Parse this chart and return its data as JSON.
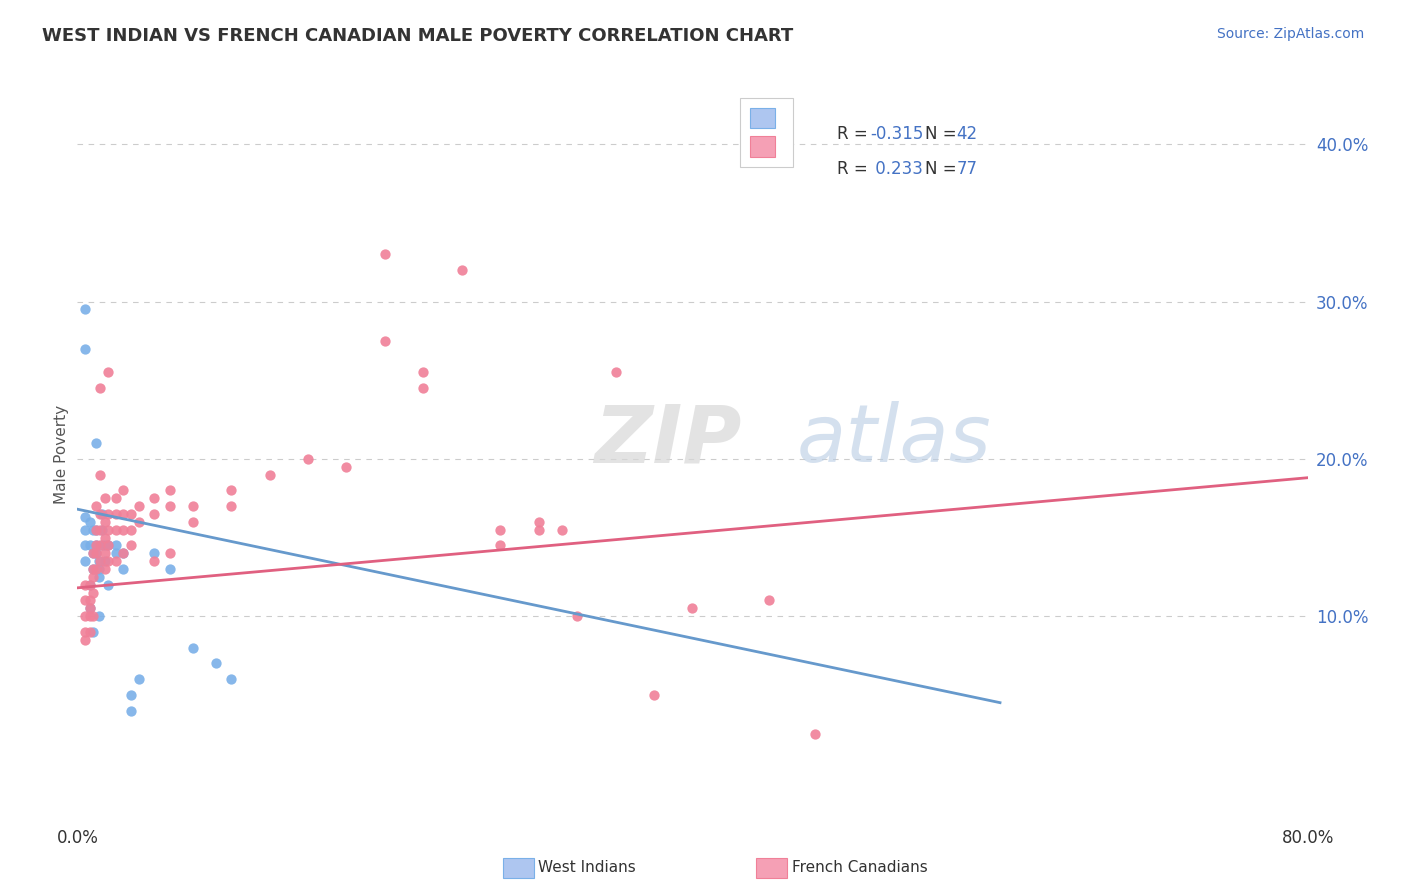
{
  "title": "WEST INDIAN VS FRENCH CANADIAN MALE POVERTY CORRELATION CHART",
  "source": "Source: ZipAtlas.com",
  "ylabel": "Male Poverty",
  "right_yticks": [
    "40.0%",
    "30.0%",
    "20.0%",
    "10.0%"
  ],
  "right_ytick_vals": [
    0.4,
    0.3,
    0.2,
    0.1
  ],
  "xlim": [
    0.0,
    0.8
  ],
  "ylim": [
    -0.03,
    0.435
  ],
  "west_indians_color": "#7ab0e8",
  "french_canadians_color": "#f08098",
  "west_legend_color": "#aec6f0",
  "french_legend_color": "#f5a0b5",
  "trend_west_color": "#6699cc",
  "trend_french_color": "#e06080",
  "background_color": "#ffffff",
  "grid_color": "#cccccc",
  "west_indians_scatter": [
    [
      0.005,
      0.135
    ],
    [
      0.005,
      0.145
    ],
    [
      0.005,
      0.155
    ],
    [
      0.005,
      0.163
    ],
    [
      0.008,
      0.16
    ],
    [
      0.008,
      0.145
    ],
    [
      0.008,
      0.12
    ],
    [
      0.008,
      0.105
    ],
    [
      0.01,
      0.155
    ],
    [
      0.01,
      0.14
    ],
    [
      0.01,
      0.13
    ],
    [
      0.01,
      0.09
    ],
    [
      0.012,
      0.21
    ],
    [
      0.012,
      0.155
    ],
    [
      0.012,
      0.145
    ],
    [
      0.012,
      0.14
    ],
    [
      0.014,
      0.135
    ],
    [
      0.014,
      0.13
    ],
    [
      0.014,
      0.125
    ],
    [
      0.014,
      0.1
    ],
    [
      0.016,
      0.165
    ],
    [
      0.016,
      0.155
    ],
    [
      0.016,
      0.145
    ],
    [
      0.018,
      0.145
    ],
    [
      0.018,
      0.135
    ],
    [
      0.02,
      0.145
    ],
    [
      0.02,
      0.12
    ],
    [
      0.025,
      0.145
    ],
    [
      0.025,
      0.14
    ],
    [
      0.03,
      0.14
    ],
    [
      0.03,
      0.13
    ],
    [
      0.035,
      0.05
    ],
    [
      0.035,
      0.04
    ],
    [
      0.04,
      0.06
    ],
    [
      0.005,
      0.295
    ],
    [
      0.005,
      0.27
    ],
    [
      0.05,
      0.14
    ],
    [
      0.06,
      0.13
    ],
    [
      0.075,
      0.08
    ],
    [
      0.09,
      0.07
    ],
    [
      0.1,
      0.06
    ]
  ],
  "french_canadians_scatter": [
    [
      0.005,
      0.12
    ],
    [
      0.005,
      0.11
    ],
    [
      0.005,
      0.1
    ],
    [
      0.005,
      0.09
    ],
    [
      0.005,
      0.085
    ],
    [
      0.008,
      0.12
    ],
    [
      0.008,
      0.11
    ],
    [
      0.008,
      0.105
    ],
    [
      0.008,
      0.1
    ],
    [
      0.008,
      0.09
    ],
    [
      0.01,
      0.14
    ],
    [
      0.01,
      0.13
    ],
    [
      0.01,
      0.125
    ],
    [
      0.01,
      0.115
    ],
    [
      0.01,
      0.1
    ],
    [
      0.012,
      0.17
    ],
    [
      0.012,
      0.155
    ],
    [
      0.012,
      0.145
    ],
    [
      0.012,
      0.14
    ],
    [
      0.012,
      0.13
    ],
    [
      0.015,
      0.19
    ],
    [
      0.015,
      0.165
    ],
    [
      0.015,
      0.155
    ],
    [
      0.015,
      0.145
    ],
    [
      0.015,
      0.135
    ],
    [
      0.018,
      0.175
    ],
    [
      0.018,
      0.16
    ],
    [
      0.018,
      0.15
    ],
    [
      0.018,
      0.14
    ],
    [
      0.018,
      0.13
    ],
    [
      0.02,
      0.165
    ],
    [
      0.02,
      0.155
    ],
    [
      0.02,
      0.145
    ],
    [
      0.02,
      0.135
    ],
    [
      0.025,
      0.175
    ],
    [
      0.025,
      0.165
    ],
    [
      0.025,
      0.155
    ],
    [
      0.03,
      0.18
    ],
    [
      0.03,
      0.165
    ],
    [
      0.03,
      0.155
    ],
    [
      0.035,
      0.165
    ],
    [
      0.035,
      0.155
    ],
    [
      0.035,
      0.145
    ],
    [
      0.04,
      0.17
    ],
    [
      0.04,
      0.16
    ],
    [
      0.05,
      0.175
    ],
    [
      0.05,
      0.165
    ],
    [
      0.06,
      0.18
    ],
    [
      0.06,
      0.17
    ],
    [
      0.075,
      0.17
    ],
    [
      0.075,
      0.16
    ],
    [
      0.1,
      0.18
    ],
    [
      0.1,
      0.17
    ],
    [
      0.125,
      0.19
    ],
    [
      0.15,
      0.2
    ],
    [
      0.175,
      0.195
    ],
    [
      0.2,
      0.33
    ],
    [
      0.2,
      0.275
    ],
    [
      0.225,
      0.255
    ],
    [
      0.225,
      0.245
    ],
    [
      0.25,
      0.32
    ],
    [
      0.275,
      0.155
    ],
    [
      0.275,
      0.145
    ],
    [
      0.3,
      0.16
    ],
    [
      0.3,
      0.155
    ],
    [
      0.315,
      0.155
    ],
    [
      0.325,
      0.1
    ],
    [
      0.35,
      0.255
    ],
    [
      0.375,
      0.05
    ],
    [
      0.015,
      0.245
    ],
    [
      0.02,
      0.255
    ],
    [
      0.025,
      0.135
    ],
    [
      0.03,
      0.14
    ],
    [
      0.05,
      0.135
    ],
    [
      0.06,
      0.14
    ],
    [
      0.4,
      0.105
    ],
    [
      0.45,
      0.11
    ],
    [
      0.48,
      0.025
    ]
  ],
  "west_trend_x": [
    0.0,
    0.6
  ],
  "west_trend_y": [
    0.168,
    0.045
  ],
  "french_trend_x": [
    0.0,
    0.8
  ],
  "french_trend_y": [
    0.118,
    0.188
  ]
}
